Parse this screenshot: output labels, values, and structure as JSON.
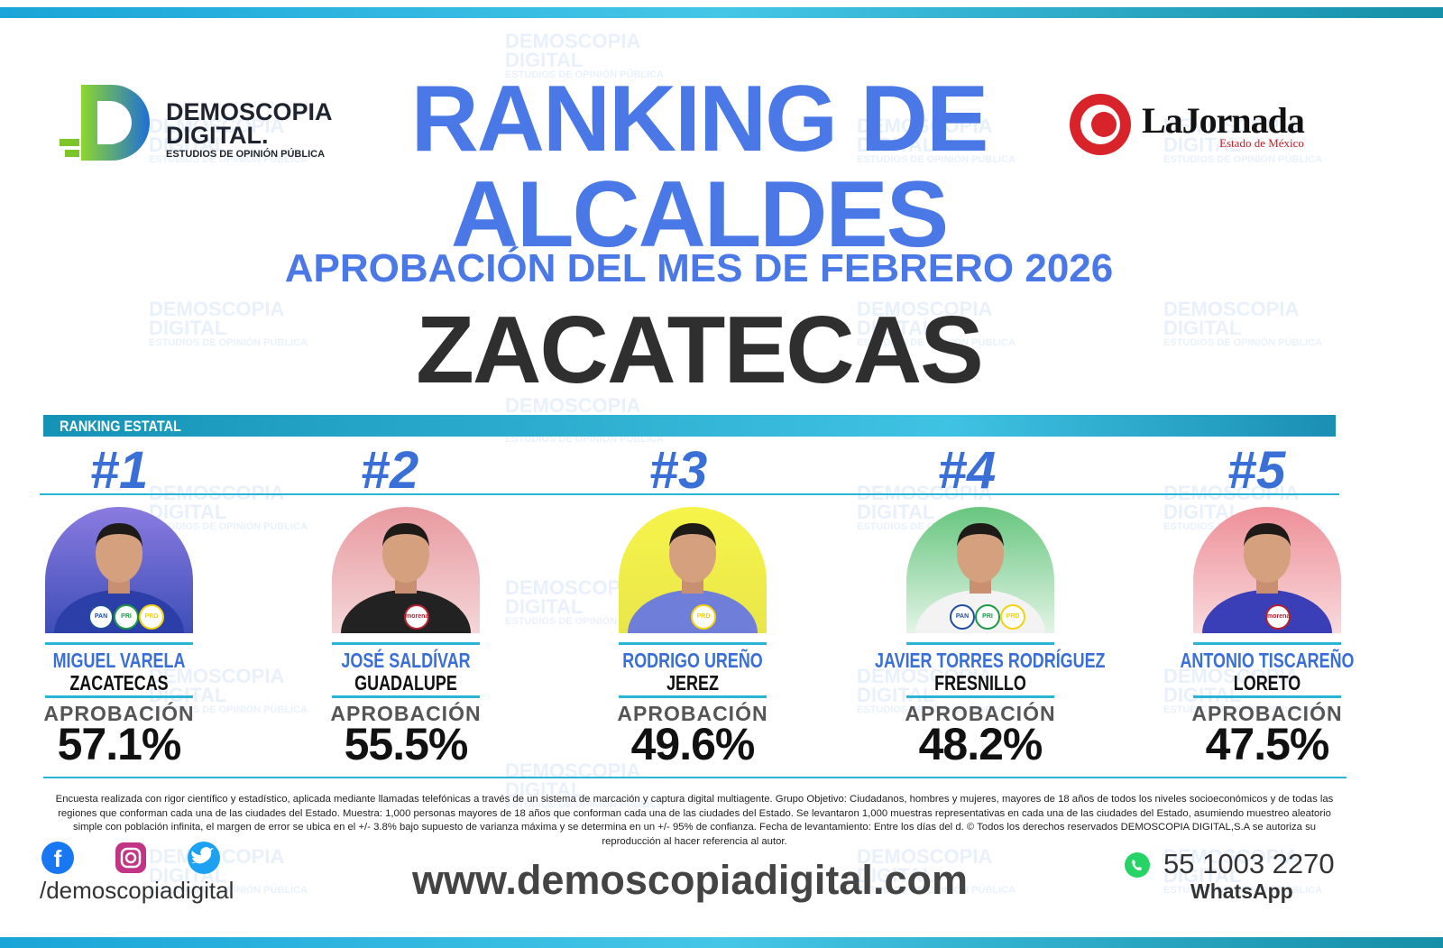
{
  "header": {
    "logo_left": {
      "line1": "DEMOSCOPIA",
      "line2": "DIGITAL.",
      "tagline": "ESTUDIOS DE OPINIÓN PÚBLICA"
    },
    "title_line1": "RANKING DE",
    "title_line2": "ALCALDES",
    "subtitle": "APROBACIÓN DEL MES DE FEBRERO 2026",
    "state": "ZACATECAS",
    "logo_right": {
      "name": "LaJornada",
      "region": "Estado de México"
    }
  },
  "watermark": {
    "line1": "DEMOSCOPIA",
    "line2": "DIGITAL",
    "tagline": "ESTUDIOS DE OPINIÓN PÚBLICA"
  },
  "section_label": "RANKING ESTATAL",
  "candidates": [
    {
      "rank": "#1",
      "name": "MIGUEL VARELA",
      "city": "ZACATECAS",
      "approval_label": "APROBACIÓN",
      "approval": "57.1%",
      "parties": [
        "PAN",
        "PRI",
        "PRD"
      ]
    },
    {
      "rank": "#2",
      "name": "JOSÉ SALDÍVAR",
      "city": "GUADALUPE",
      "approval_label": "APROBACIÓN",
      "approval": "55.5%",
      "parties": [
        "morena"
      ]
    },
    {
      "rank": "#3",
      "name": "RODRIGO UREÑO",
      "city": "JEREZ",
      "approval_label": "APROBACIÓN",
      "approval": "49.6%",
      "parties": [
        "PRD"
      ]
    },
    {
      "rank": "#4",
      "name": "JAVIER TORRES RODRÍGUEZ",
      "city": "FRESNILLO",
      "approval_label": "APROBACIÓN",
      "approval": "48.2%",
      "parties": [
        "PAN",
        "PRI",
        "PRD"
      ]
    },
    {
      "rank": "#5",
      "name": "ANTONIO TISCAREÑO",
      "city": "LORETO",
      "approval_label": "APROBACIÓN",
      "approval": "47.5%",
      "parties": [
        "morena"
      ]
    }
  ],
  "footer": {
    "methodology": "Encuesta realizada con rigor científico y estadístico, aplicada mediante llamadas telefónicas a través de un sistema de marcación y captura digital multiagente. Grupo Objetivo: Ciudadanos, hombres y mujeres, mayores de 18 años de todos los niveles socioeconómicos y de todas las regiones que conforman cada una de las ciudades del Estado. Muestra: 1,000 personas mayores de 18 años que conforman cada una de las ciudades del Estado. Se levantaron 1,000 muestras representativas en cada una de las ciudades del Estado, asumiendo muestreo aleatorio simple con población infinita, el margen de error se ubica en el +/- 3.8% bajo supuesto de varianza máxima y se determina en un +/- 95% de confianza. Fecha de levantamiento: Entre los días del d. © Todos los derechos reservados DEMOSCOPIA DIGITAL,S.A se autoriza su reproducción al hacer referencia al autor.",
    "social_handle": "/demoscopiadigital",
    "website": "www.demoscopiadigital.com",
    "phone": "55 1003 2270",
    "phone_label": "WhatsApp"
  }
}
